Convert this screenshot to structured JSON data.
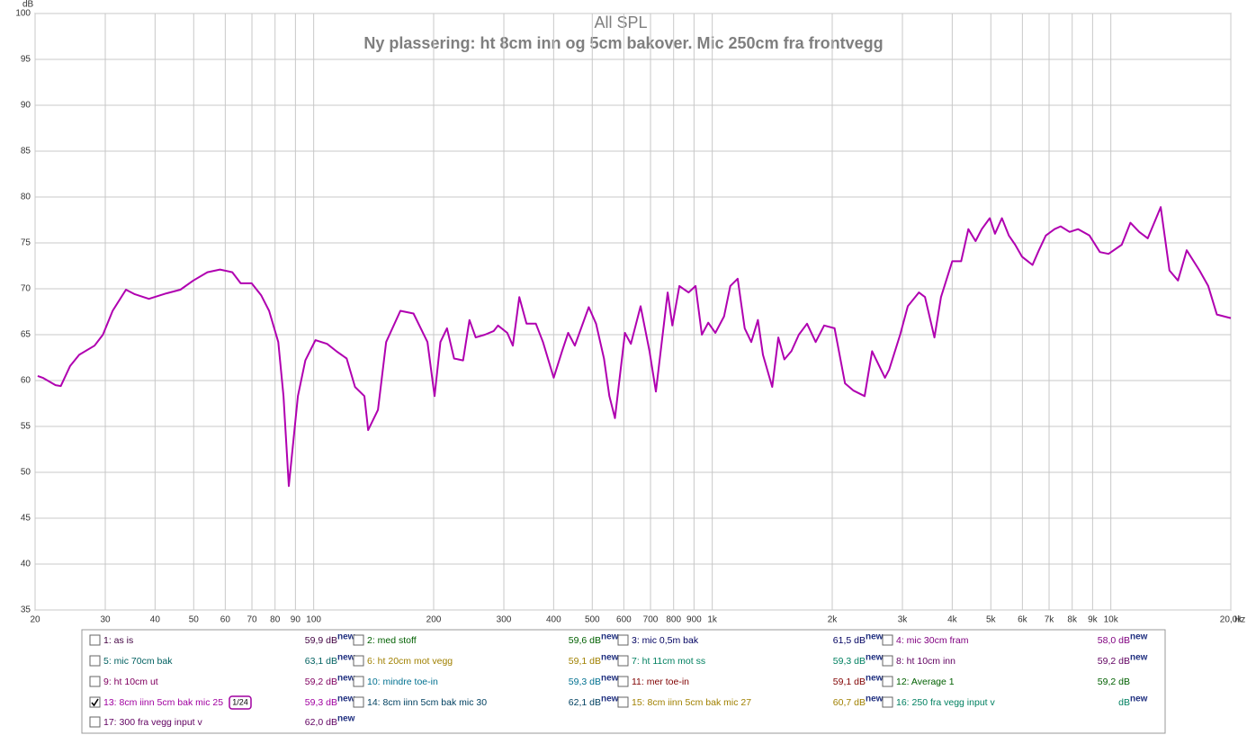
{
  "chart_data": {
    "type": "line",
    "title": "All SPL",
    "subtitle": "Ny plassering: ht 8cm inn og 5cm bakover. Mic 250cm fra frontvegg",
    "y_unit": "dB",
    "x_unit": "Hz",
    "xscale": "log",
    "grid": true,
    "xlim": [
      20,
      20000
    ],
    "ylim": [
      35,
      100
    ],
    "yticks": [
      35,
      40,
      45,
      50,
      55,
      60,
      65,
      70,
      75,
      80,
      85,
      90,
      95,
      100
    ],
    "xticks": [
      20,
      30,
      40,
      50,
      60,
      70,
      80,
      90,
      100,
      200,
      300,
      400,
      500,
      600,
      700,
      800,
      900,
      {
        "value": 1000,
        "label": "1k"
      },
      {
        "value": 2000,
        "label": "2k"
      },
      {
        "value": 3000,
        "label": "3k"
      },
      {
        "value": 4000,
        "label": "4k"
      },
      {
        "value": 5000,
        "label": "5k"
      },
      {
        "value": 6000,
        "label": "6k"
      },
      {
        "value": 7000,
        "label": "7k"
      },
      {
        "value": 8000,
        "label": "8k"
      },
      {
        "value": 9000,
        "label": "9k"
      },
      {
        "value": 10000,
        "label": "10k"
      },
      {
        "value": 20000,
        "label": "20,0k"
      }
    ],
    "series": [
      {
        "color": "#b000b0",
        "x": [
          20.3,
          20.9,
          22.5,
          23.2,
          24.5,
          25.8,
          28.2,
          29.6,
          31.3,
          33.8,
          35.6,
          38.6,
          42.7,
          46.3,
          49.9,
          54.1,
          58.2,
          62.5,
          65.6,
          69.9,
          73.8,
          77.3,
          81.5,
          84,
          86.6,
          91.3,
          95.3,
          101,
          108,
          114,
          121,
          127,
          134,
          137,
          145,
          152,
          165,
          178,
          193,
          201,
          208,
          216,
          225,
          237,
          246,
          255,
          269,
          283,
          290,
          306,
          316,
          328,
          342,
          361,
          376,
          400,
          420,
          435,
          452,
          490,
          511,
          535,
          552,
          570,
          604,
          625,
          661,
          696,
          722,
          773,
          794,
          827,
          872,
          908,
          942,
          977,
          1018,
          1071,
          1110,
          1158,
          1206,
          1253,
          1302,
          1340,
          1414,
          1465,
          1517,
          1580,
          1649,
          1729,
          1818,
          1909,
          2027,
          2153,
          2262,
          2411,
          2518,
          2712,
          2779,
          2961,
          3095,
          3300,
          3418,
          3610,
          3749,
          4000,
          4212,
          4390,
          4577,
          4744,
          4969,
          5122,
          5331,
          5547,
          5754,
          5984,
          6362,
          6600,
          6870,
          7223,
          7486,
          7880,
          8280,
          8840,
          9390,
          9870,
          10650,
          11200,
          11780,
          12380,
          13340,
          14030,
          14740,
          15500,
          16690,
          17550,
          18450,
          20000
        ],
        "values": [
          60.5,
          60.3,
          59.5,
          59.4,
          61.6,
          62.8,
          63.8,
          65,
          67.6,
          69.9,
          69.4,
          68.9,
          69.5,
          69.9,
          70.9,
          71.8,
          72.1,
          71.8,
          70.6,
          70.6,
          69.3,
          67.6,
          64.2,
          58.3,
          48.5,
          58.3,
          62.2,
          64.4,
          64,
          63.2,
          62.4,
          59.3,
          58.3,
          54.6,
          56.8,
          64.2,
          67.6,
          67.3,
          64.2,
          58.3,
          64.2,
          65.7,
          62.4,
          62.2,
          66.6,
          64.7,
          65,
          65.4,
          66,
          65.2,
          63.8,
          69.1,
          66.2,
          66.2,
          64.2,
          60.3,
          63.2,
          65.2,
          63.8,
          68,
          66.2,
          62.4,
          58.3,
          55.9,
          65.2,
          64,
          68.1,
          63.2,
          58.8,
          69.6,
          66,
          70.3,
          69.6,
          70.3,
          65,
          66.3,
          65.2,
          67,
          70.3,
          71.1,
          65.7,
          64.2,
          66.6,
          62.8,
          59.3,
          64.7,
          62.3,
          63.2,
          65,
          66.2,
          64.2,
          66,
          65.7,
          59.7,
          58.9,
          58.3,
          63.2,
          60.3,
          61.2,
          65,
          68.1,
          69.6,
          69.1,
          64.7,
          69.1,
          73,
          73,
          76.5,
          75.2,
          76.5,
          77.7,
          76,
          77.7,
          75.8,
          74.8,
          73.5,
          72.6,
          74.2,
          75.8,
          76.5,
          76.8,
          76.2,
          76.5,
          75.8,
          74,
          73.8,
          74.8,
          77.2,
          76.2,
          75.5,
          78.9,
          72,
          70.9,
          74.2,
          72,
          70.3,
          67.2,
          66.8
        ]
      }
    ]
  },
  "legend_panel": {
    "items": [
      {
        "label": "1: as is",
        "value": "59,9 dB",
        "badge": "new",
        "color": "#400040",
        "checked": false
      },
      {
        "label": "2: med stoff",
        "value": "59,6 dB",
        "badge": "new",
        "color": "#006000",
        "checked": false
      },
      {
        "label": "3: mic 0,5m bak",
        "value": "61,5 dB",
        "badge": "new",
        "color": "#000060",
        "checked": false
      },
      {
        "label": "4: mic 30cm fram",
        "value": "58,0 dB",
        "badge": "new",
        "color": "#800080",
        "checked": false
      },
      {
        "label": "5: mic 70cm bak",
        "value": "63,1 dB",
        "badge": "new",
        "color": "#006060",
        "checked": false
      },
      {
        "label": "6: ht 20cm mot vegg",
        "value": "59,1 dB",
        "badge": "new",
        "color": "#a08000",
        "checked": false
      },
      {
        "label": "7: ht 11cm mot ss",
        "value": "59,3 dB",
        "badge": "new",
        "color": "#008060",
        "checked": false
      },
      {
        "label": "8: ht 10cm inn",
        "value": "59,2 dB",
        "badge": "new",
        "color": "#600060",
        "checked": false
      },
      {
        "label": "9: ht 10cm ut",
        "value": "59,2 dB",
        "badge": "new",
        "color": "#800060",
        "checked": false
      },
      {
        "label": "10: mindre toe-in",
        "value": "59,3 dB",
        "badge": "new",
        "color": "#007090",
        "checked": false
      },
      {
        "label": "11: mer toe-in",
        "value": "59,1 dB",
        "badge": "new",
        "color": "#800000",
        "checked": false
      },
      {
        "label": "12: Average 1",
        "value": "59,2 dB",
        "color": "#006000",
        "checked": false
      },
      {
        "label": "13: 8cm iinn 5cm bak mic 25",
        "value": "59,3 dB",
        "badge": "new",
        "color": "#a000a0",
        "checked": true,
        "smoothing": "1/24"
      },
      {
        "label": "14: 8cm iinn 5cm bak mic 30",
        "value": "62,1 dB",
        "badge": "new",
        "color": "#004060",
        "checked": false
      },
      {
        "label": "15: 8cm iinn 5cm bak mic 27",
        "value": "60,7 dB",
        "badge": "new",
        "color": "#a08000",
        "checked": false
      },
      {
        "label": "16: 250 fra vegg input v",
        "value": "dB",
        "badge": "new",
        "color": "#008060",
        "checked": false
      },
      {
        "label": "17: 300 fra vegg input v",
        "value": "62,0 dB",
        "badge": "new",
        "color": "#600060",
        "checked": false
      }
    ]
  }
}
